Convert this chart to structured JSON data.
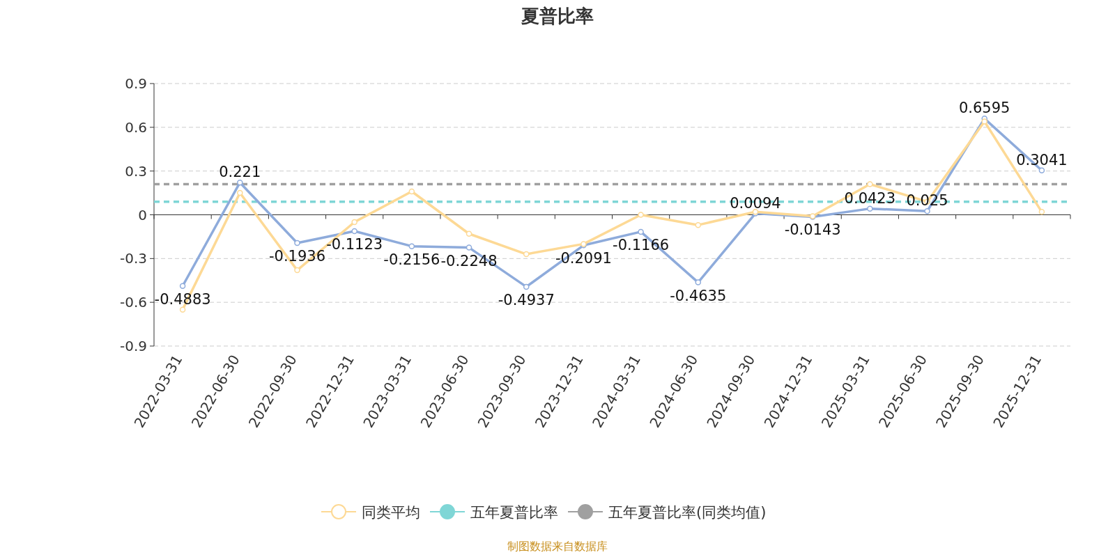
{
  "chart_data": {
    "type": "line",
    "title": "夏普比率",
    "categories": [
      "2022-03-31",
      "2022-06-30",
      "2022-09-30",
      "2022-12-31",
      "2023-03-31",
      "2023-06-30",
      "2023-09-30",
      "2023-12-31",
      "2024-03-31",
      "2024-06-30",
      "2024-09-30",
      "2024-12-31",
      "2025-03-31",
      "2025-06-30",
      "2025-09-30",
      "2025-12-31"
    ],
    "series": [
      {
        "color": "#8eabdb",
        "values": [
          -0.4883,
          0.221,
          -0.1936,
          -0.1123,
          -0.2156,
          -0.2248,
          -0.4937,
          -0.2091,
          -0.1166,
          -0.4635,
          0.0094,
          -0.0143,
          0.0423,
          0.025,
          0.6595,
          0.3041
        ],
        "value_labels": [
          "-0.4883",
          "0.221",
          "-0.1936",
          "-0.1123",
          "-0.2156",
          "-0.2248",
          "-0.4937",
          "-0.2091",
          "-0.1166",
          "-0.4635",
          "0.0094",
          "-0.0143",
          "0.0423",
          "0.025",
          "0.6595",
          "0.3041"
        ]
      },
      {
        "name": "同类平均",
        "color": "#fdd995",
        "values": [
          -0.65,
          0.15,
          -0.38,
          -0.05,
          0.16,
          -0.13,
          -0.27,
          -0.2,
          0.0,
          -0.07,
          0.02,
          -0.01,
          0.21,
          0.09,
          0.64,
          0.02
        ]
      }
    ],
    "ref_lines": [
      {
        "axis": "y",
        "value": 0.09,
        "label": "五年夏普比率",
        "color": "#7fd6d6",
        "line_style": "dashed"
      },
      {
        "axis": "y",
        "value": 0.21,
        "label": "五年夏普比率(同类均值)",
        "color": "#a0a0a0",
        "line_style": "dashed"
      }
    ],
    "ylim": [
      -0.9,
      0.9
    ],
    "yticks": [
      -0.9,
      -0.6,
      -0.3,
      0,
      0.3,
      0.6,
      0.9
    ],
    "grid": "y",
    "marker": "circle",
    "legend": "bottom",
    "annotations": [
      "制图数据来自数据库"
    ]
  }
}
